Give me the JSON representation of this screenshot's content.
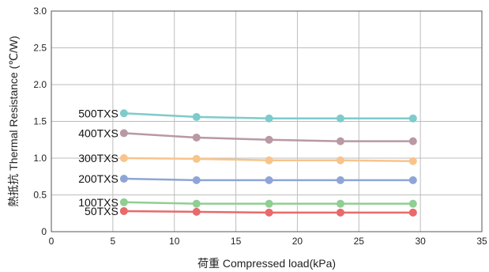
{
  "chart_data": {
    "type": "line",
    "xlabel": "荷重  Compressed load(kPa)",
    "ylabel": "熱抵抗  Thermal Resistance (℃/W)",
    "xlim": [
      0,
      35
    ],
    "ylim": [
      0,
      3.0
    ],
    "x_ticks": [
      "0",
      "5",
      "10",
      "15",
      "20",
      "25",
      "30",
      "35"
    ],
    "y_ticks": [
      "0",
      "0.5",
      "1.0",
      "1.5",
      "2.0",
      "2.5",
      "3.0"
    ],
    "grid": true,
    "x": [
      5.9,
      11.8,
      17.7,
      23.5,
      29.4
    ],
    "series": [
      {
        "name": "500TXS",
        "color": "#7ecbcb",
        "values": [
          1.61,
          1.56,
          1.54,
          1.54,
          1.54
        ]
      },
      {
        "name": "400TXS",
        "color": "#b899a4",
        "values": [
          1.34,
          1.28,
          1.25,
          1.23,
          1.23
        ]
      },
      {
        "name": "300TXS",
        "color": "#f8c48a",
        "values": [
          1.0,
          0.99,
          0.97,
          0.97,
          0.96
        ]
      },
      {
        "name": "200TXS",
        "color": "#8fa5d6",
        "values": [
          0.72,
          0.7,
          0.7,
          0.7,
          0.7
        ]
      },
      {
        "name": "100TXS",
        "color": "#8fcf92",
        "values": [
          0.4,
          0.38,
          0.38,
          0.38,
          0.38
        ]
      },
      {
        "name": "50TXS",
        "color": "#e86a6a",
        "values": [
          0.28,
          0.27,
          0.26,
          0.26,
          0.26
        ]
      }
    ]
  }
}
